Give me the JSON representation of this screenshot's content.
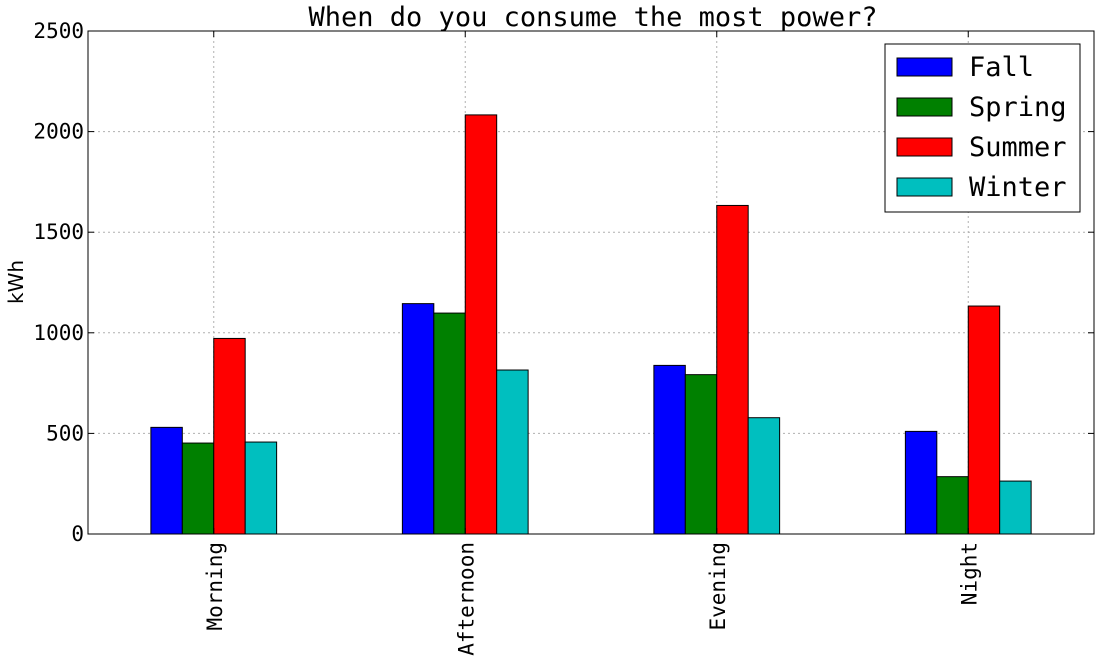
{
  "chart_data": {
    "type": "bar",
    "title": "When do you consume the most power?",
    "xlabel": "",
    "ylabel": "kWh",
    "categories": [
      "Morning",
      "Afternoon",
      "Evening",
      "Night"
    ],
    "series": [
      {
        "name": "Fall",
        "color": "#0000ff",
        "values": [
          530,
          1145,
          838,
          510
        ]
      },
      {
        "name": "Spring",
        "color": "#008000",
        "values": [
          452,
          1098,
          792,
          285
        ]
      },
      {
        "name": "Summer",
        "color": "#ff0000",
        "values": [
          972,
          2083,
          1633,
          1133
        ]
      },
      {
        "name": "Winter",
        "color": "#00bfbf",
        "values": [
          457,
          815,
          578,
          263
        ]
      }
    ],
    "ylim": [
      0,
      2500
    ],
    "yticks": [
      "0",
      "500",
      "1000",
      "1500",
      "2000",
      "2500"
    ],
    "grid": true,
    "legend_position": "top-right"
  }
}
